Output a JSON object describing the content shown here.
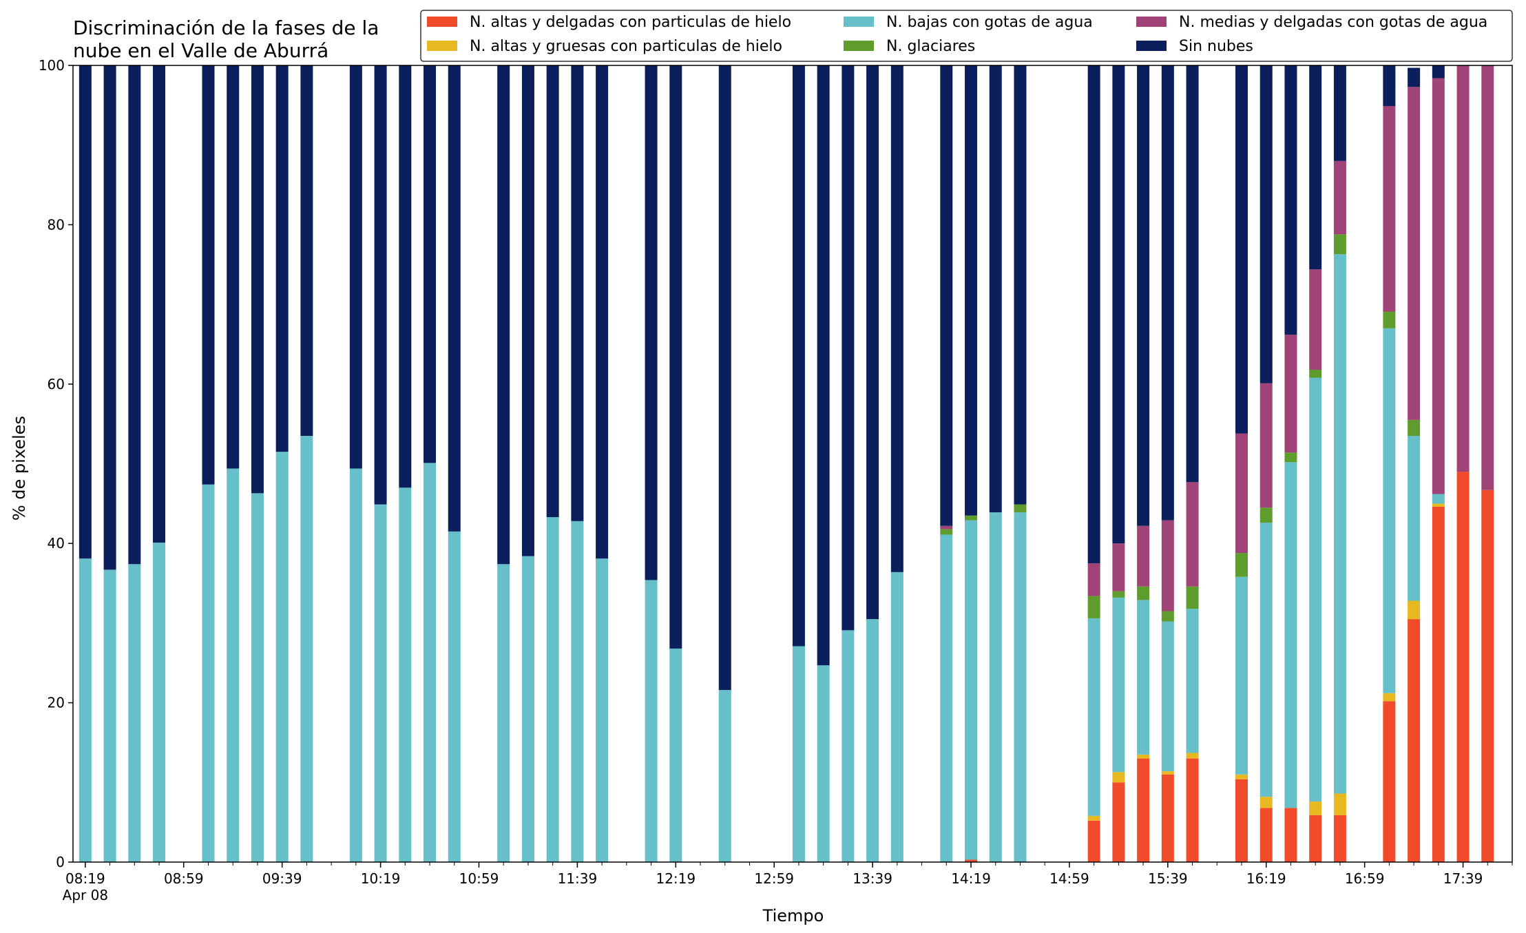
{
  "chart_data": {
    "type": "bar",
    "stacked": true,
    "title": "Discriminación de la fases de la\nnube en el Valle de Aburrá",
    "xlabel": "Tiempo",
    "ylabel": "% de pixeles",
    "ylim": [
      0,
      100
    ],
    "yticks": [
      0,
      20,
      40,
      60,
      80,
      100
    ],
    "grid": false,
    "legend_placement": "top-right",
    "x_tick_labels": [
      "08:19",
      "08:59",
      "09:39",
      "10:19",
      "10:59",
      "11:39",
      "12:19",
      "12:59",
      "13:39",
      "14:19",
      "14:59",
      "15:39",
      "16:19",
      "16:59",
      "17:39"
    ],
    "x_tick_sublabel": "Apr 08",
    "x": [
      "08:19",
      "08:29",
      "08:39",
      "08:49",
      "09:09",
      "09:19",
      "09:29",
      "09:39",
      "09:49",
      "10:09",
      "10:19",
      "10:29",
      "10:39",
      "10:49",
      "11:09",
      "11:19",
      "11:29",
      "11:39",
      "11:49",
      "12:09",
      "12:19",
      "12:39",
      "13:09",
      "13:19",
      "13:29",
      "13:39",
      "13:49",
      "14:09",
      "14:19",
      "14:29",
      "14:39",
      "15:09",
      "15:19",
      "15:29",
      "15:39",
      "15:49",
      "16:09",
      "16:19",
      "16:29",
      "16:39",
      "16:49",
      "17:09",
      "17:19",
      "17:29",
      "17:39",
      "17:49"
    ],
    "legend": [
      {
        "name": "N. altas y delgadas con particulas de hielo",
        "color": "#f04b2a",
        "col": 0,
        "row": 0
      },
      {
        "name": "N. altas y gruesas con particulas de hielo",
        "color": "#e8b820",
        "col": 0,
        "row": 1
      },
      {
        "name": "N. bajas con gotas de agua",
        "color": "#66bfc9",
        "col": 1,
        "row": 0
      },
      {
        "name": "N. glaciares",
        "color": "#5e9c2e",
        "col": 1,
        "row": 1
      },
      {
        "name": "N. medias y delgadas con gotas de agua",
        "color": "#a04478",
        "col": 2,
        "row": 0
      },
      {
        "name": "Sin nubes",
        "color": "#0a1f5c",
        "col": 2,
        "row": 1
      }
    ],
    "series": [
      {
        "name": "N. altas y delgadas con particulas de hielo",
        "color": "#f04b2a",
        "values": [
          0,
          0,
          0,
          0,
          0,
          0,
          0,
          0,
          0,
          0,
          0,
          0,
          0,
          0,
          0,
          0,
          0,
          0,
          0,
          0,
          0,
          0,
          0,
          0,
          0,
          0,
          0,
          0,
          0.3,
          0,
          0,
          5.2,
          10.0,
          13.0,
          11.0,
          13.0,
          10.4,
          6.8,
          6.8,
          5.9,
          5.9,
          20.2,
          30.5,
          44.6,
          49.0,
          46.7
        ]
      },
      {
        "name": "N. altas y gruesas con particulas de hielo",
        "color": "#e8b820",
        "values": [
          0,
          0,
          0,
          0,
          0,
          0,
          0,
          0,
          0,
          0,
          0,
          0,
          0,
          0,
          0,
          0,
          0,
          0,
          0,
          0,
          0,
          0,
          0,
          0,
          0,
          0,
          0,
          0,
          0,
          0,
          0,
          0.6,
          1.3,
          0.5,
          0.4,
          0.7,
          0.6,
          1.4,
          0,
          1.7,
          2.7,
          1.0,
          2.3,
          0.4,
          0,
          0
        ]
      },
      {
        "name": "N. bajas con gotas de agua",
        "color": "#66bfc9",
        "values": [
          38.1,
          36.7,
          37.4,
          40.1,
          47.4,
          49.4,
          46.3,
          51.5,
          53.5,
          49.4,
          44.9,
          47.0,
          50.1,
          41.5,
          37.4,
          38.4,
          43.3,
          42.8,
          38.1,
          35.4,
          26.8,
          21.6,
          27.1,
          24.7,
          29.1,
          30.5,
          36.4,
          41.1,
          42.6,
          43.9,
          43.9,
          24.8,
          21.9,
          19.4,
          18.8,
          18.1,
          24.8,
          34.4,
          43.4,
          53.2,
          67.7,
          45.8,
          20.7,
          1.2,
          0,
          0
        ]
      },
      {
        "name": "N. glaciares",
        "color": "#5e9c2e",
        "values": [
          0,
          0,
          0,
          0,
          0,
          0,
          0,
          0,
          0,
          0,
          0,
          0,
          0,
          0,
          0,
          0,
          0,
          0,
          0,
          0,
          0,
          0,
          0,
          0,
          0,
          0,
          0,
          0.7,
          0.6,
          0,
          1.0,
          2.8,
          0.8,
          1.7,
          1.3,
          2.8,
          3.0,
          1.9,
          1.2,
          1.0,
          2.5,
          2.1,
          2.0,
          0,
          0,
          0
        ]
      },
      {
        "name": "N. medias y delgadas con gotas de agua",
        "color": "#a04478",
        "values": [
          0,
          0,
          0,
          0,
          0,
          0,
          0,
          0,
          0,
          0,
          0,
          0,
          0,
          0,
          0,
          0,
          0,
          0,
          0,
          0,
          0,
          0,
          0,
          0,
          0,
          0,
          0,
          0.4,
          0,
          0,
          0,
          4.1,
          6.0,
          7.6,
          11.4,
          13.1,
          15.0,
          15.6,
          14.8,
          12.6,
          9.2,
          25.8,
          41.8,
          52.2,
          51.0,
          53.3
        ]
      },
      {
        "name": "Sin nubes",
        "color": "#0a1f5c",
        "values": [
          61.9,
          63.3,
          62.6,
          59.9,
          52.6,
          50.6,
          53.7,
          48.5,
          46.5,
          50.6,
          55.1,
          53.0,
          49.9,
          58.5,
          62.6,
          61.6,
          56.7,
          57.2,
          61.9,
          64.6,
          73.2,
          78.4,
          72.9,
          75.3,
          70.9,
          69.5,
          63.6,
          57.8,
          56.5,
          56.1,
          55.1,
          62.5,
          60.0,
          57.8,
          57.1,
          52.3,
          46.2,
          39.9,
          33.8,
          25.6,
          12.0,
          5.1,
          2.4,
          1.6,
          0,
          0
        ]
      }
    ]
  }
}
